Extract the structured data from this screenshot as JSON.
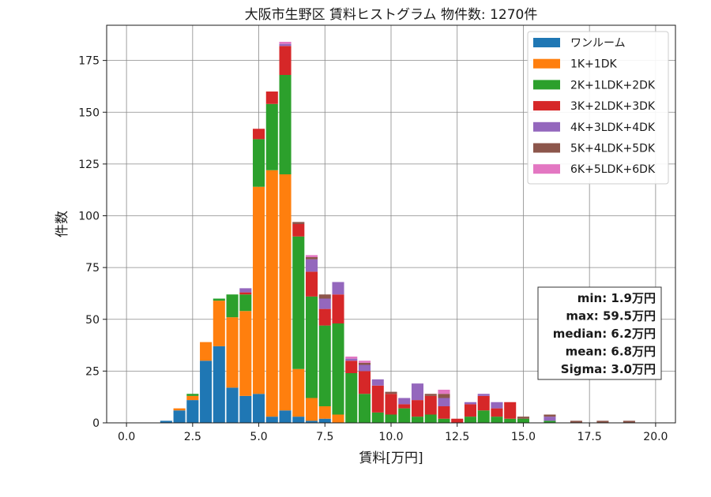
{
  "chart_data": {
    "type": "bar",
    "stacked": true,
    "title": "大阪市生野区 賃料ヒストグラム  物件数: 1270件",
    "xlabel": "賃料[万円]",
    "ylabel": "件数",
    "xlim": [
      -0.75,
      20.75
    ],
    "ylim": [
      0,
      192
    ],
    "xticks": [
      0.0,
      2.5,
      5.0,
      7.5,
      10.0,
      12.5,
      15.0,
      17.5,
      20.0
    ],
    "xtick_labels": [
      "0.0",
      "2.5",
      "5.0",
      "7.5",
      "10.0",
      "12.5",
      "15.0",
      "17.5",
      "20.0"
    ],
    "yticks": [
      0,
      25,
      50,
      75,
      100,
      125,
      150,
      175
    ],
    "ytick_labels": [
      "0",
      "25",
      "50",
      "75",
      "100",
      "125",
      "150",
      "175"
    ],
    "grid": true,
    "legend_position": "top-right",
    "bin_width": 0.5,
    "x": [
      1.5,
      2.0,
      2.5,
      3.0,
      3.5,
      4.0,
      4.5,
      5.0,
      5.5,
      6.0,
      6.5,
      7.0,
      7.5,
      8.0,
      8.5,
      9.0,
      9.5,
      10.0,
      10.5,
      11.0,
      11.5,
      12.0,
      12.5,
      13.0,
      13.5,
      14.0,
      14.5,
      15.0,
      15.5,
      16.0,
      16.5,
      17.0,
      17.5,
      18.0,
      18.5,
      19.0,
      19.5
    ],
    "series": [
      {
        "name": "ワンルーム",
        "color": "#1f77b4",
        "values": [
          1,
          6,
          11,
          30,
          37,
          17,
          13,
          14,
          3,
          6,
          3,
          1,
          2,
          0,
          0,
          0,
          0,
          0,
          0,
          0,
          0,
          0,
          0,
          0,
          0,
          0,
          0,
          0,
          0,
          0,
          0,
          0,
          0,
          0,
          0,
          0,
          0
        ]
      },
      {
        "name": "1K+1DK",
        "color": "#ff7f0e",
        "values": [
          0,
          1,
          2,
          9,
          22,
          34,
          41,
          100,
          119,
          114,
          23,
          11,
          6,
          4,
          0,
          0,
          0,
          0,
          0,
          0,
          0,
          0,
          0,
          0,
          0,
          0,
          0,
          0,
          0,
          0,
          0,
          0,
          0,
          0,
          0,
          0,
          0
        ]
      },
      {
        "name": "2K+1LDK+2DK",
        "color": "#2ca02c",
        "values": [
          0,
          0,
          1,
          0,
          1,
          11,
          8,
          23,
          32,
          48,
          64,
          49,
          39,
          44,
          24,
          14,
          5,
          4,
          7,
          3,
          4,
          2,
          0,
          3,
          6,
          3,
          2,
          2,
          0,
          1,
          0,
          0,
          0,
          0,
          0,
          0,
          0
        ]
      },
      {
        "name": "3K+2LDK+3DK",
        "color": "#d62728",
        "values": [
          0,
          0,
          0,
          0,
          0,
          0,
          1,
          5,
          6,
          14,
          6,
          12,
          8,
          14,
          6,
          11,
          13,
          10,
          2,
          8,
          9,
          6,
          2,
          6,
          7,
          4,
          8,
          0,
          0,
          0,
          0,
          0,
          0,
          0,
          0,
          0,
          0
        ]
      },
      {
        "name": "4K+3LDK+4DK",
        "color": "#9467bd",
        "values": [
          0,
          0,
          0,
          0,
          0,
          0,
          2,
          0,
          0,
          1,
          0,
          6,
          5,
          6,
          1,
          3,
          3,
          0,
          3,
          8,
          0,
          4,
          0,
          1,
          1,
          3,
          0,
          0,
          0,
          2,
          0,
          0,
          0,
          0,
          0,
          0,
          0
        ]
      },
      {
        "name": "5K+4LDK+5DK",
        "color": "#8c564b",
        "values": [
          0,
          0,
          0,
          0,
          0,
          0,
          0,
          0,
          0,
          0,
          1,
          1,
          2,
          0,
          0,
          1,
          0,
          1,
          0,
          0,
          1,
          2,
          0,
          0,
          0,
          0,
          0,
          1,
          0,
          1,
          0,
          1,
          0,
          1,
          0,
          1,
          0
        ]
      },
      {
        "name": "6K+5LDK+6DK",
        "color": "#e377c2",
        "values": [
          0,
          0,
          0,
          0,
          0,
          0,
          0,
          0,
          0,
          1,
          0,
          1,
          0,
          0,
          1,
          1,
          0,
          0,
          0,
          0,
          0,
          2,
          0,
          0,
          0,
          0,
          0,
          0,
          0,
          0,
          0,
          0,
          0,
          0,
          0,
          0,
          0
        ]
      }
    ],
    "annotation": [
      "min: 1.9万円",
      "max: 59.5万円",
      "median: 6.2万円",
      "mean: 6.8万円",
      "Sigma: 3.0万円"
    ]
  }
}
